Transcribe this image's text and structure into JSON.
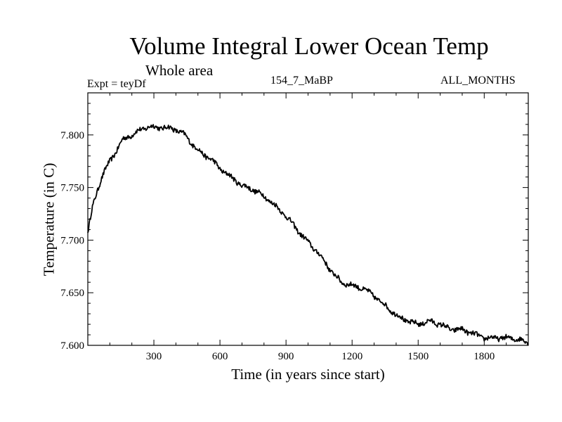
{
  "chart_data": {
    "type": "line",
    "title": "Volume Integral Lower Ocean Temp",
    "subtitle": "Whole area",
    "experiment_label": "Expt = teyDf",
    "run_label": "154_7_MaBP",
    "months_label": "ALL_MONTHS",
    "xlabel": "Time (in years since start)",
    "ylabel": "Temperature (in C)",
    "xlim": [
      0,
      2000
    ],
    "ylim": [
      7.6,
      7.84
    ],
    "xticks": [
      300,
      600,
      900,
      1200,
      1500,
      1800
    ],
    "xtick_labels": [
      "300",
      "600",
      "900",
      "1200",
      "1500",
      "1800"
    ],
    "yticks": [
      7.6,
      7.65,
      7.7,
      7.75,
      7.8
    ],
    "ytick_labels": [
      "7.600",
      "7.650",
      "7.700",
      "7.750",
      "7.800"
    ],
    "grid": false,
    "series": [
      {
        "name": "Volume Integral Lower Ocean Temp",
        "color": "#000000",
        "x": [
          0,
          20,
          40,
          60,
          80,
          100,
          130,
          160,
          200,
          240,
          280,
          320,
          360,
          400,
          440,
          480,
          520,
          560,
          600,
          650,
          700,
          750,
          800,
          850,
          900,
          950,
          1000,
          1050,
          1100,
          1150,
          1200,
          1250,
          1300,
          1350,
          1400,
          1450,
          1500,
          1550,
          1600,
          1650,
          1700,
          1750,
          1800,
          1850,
          1900,
          1950,
          2000
        ],
        "values": [
          7.707,
          7.73,
          7.745,
          7.758,
          7.767,
          7.775,
          7.785,
          7.796,
          7.8,
          7.805,
          7.808,
          7.807,
          7.807,
          7.805,
          7.8,
          7.79,
          7.782,
          7.777,
          7.768,
          7.76,
          7.752,
          7.748,
          7.742,
          7.733,
          7.723,
          7.71,
          7.698,
          7.687,
          7.672,
          7.66,
          7.657,
          7.654,
          7.647,
          7.638,
          7.629,
          7.623,
          7.62,
          7.623,
          7.62,
          7.615,
          7.615,
          7.611,
          7.607,
          7.607,
          7.607,
          7.606,
          7.603
        ]
      }
    ]
  }
}
